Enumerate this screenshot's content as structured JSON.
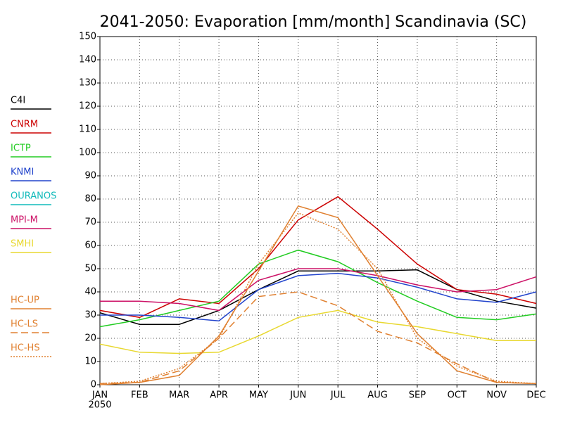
{
  "chart_data": {
    "type": "line",
    "title": "2041-2050: Evaporation [mm/month] Scandinavia (SC)",
    "categories": [
      "JAN",
      "FEB",
      "MAR",
      "APR",
      "MAY",
      "JUN",
      "JUL",
      "AUG",
      "SEP",
      "OCT",
      "NOV",
      "DEC"
    ],
    "x_sublabel": "2050",
    "ylim": [
      0,
      150
    ],
    "yticks": [
      0,
      10,
      20,
      30,
      40,
      50,
      60,
      70,
      80,
      90,
      100,
      110,
      120,
      130,
      140,
      150
    ],
    "grid": true,
    "legend": "left",
    "series": [
      {
        "name": "C4I",
        "color": "#000000",
        "dash": "solid",
        "values": [
          31,
          26,
          26,
          32,
          41,
          49,
          49,
          49,
          49.5,
          41,
          36,
          33
        ]
      },
      {
        "name": "CNRM",
        "color": "#cc0000",
        "dash": "solid",
        "values": [
          32,
          29,
          37,
          35,
          50,
          71,
          81,
          67,
          52,
          41,
          39,
          35
        ]
      },
      {
        "name": "ICTP",
        "color": "#22cc22",
        "dash": "solid",
        "values": [
          25,
          28,
          32,
          36,
          52,
          58,
          53,
          44,
          36,
          29,
          28,
          30.5
        ]
      },
      {
        "name": "KNMI",
        "color": "#2244cc",
        "dash": "solid",
        "values": [
          30,
          30,
          29,
          27.5,
          41,
          47,
          48,
          46,
          42,
          37,
          35.5,
          40
        ]
      },
      {
        "name": "OURANOS",
        "color": "#11bbbb",
        "dash": "solid",
        "values": [
          null,
          null,
          null,
          null,
          null,
          null,
          null,
          null,
          null,
          null,
          null,
          null
        ]
      },
      {
        "name": "MPI-M",
        "color": "#cc1166",
        "dash": "solid",
        "values": [
          36,
          36,
          35,
          32,
          45,
          50,
          50,
          47,
          43,
          40,
          41,
          46.5
        ]
      },
      {
        "name": "SMHI",
        "color": "#e8d830",
        "dash": "solid",
        "values": [
          17.5,
          14,
          13.5,
          14,
          21,
          29,
          32,
          27,
          25,
          22,
          19,
          19
        ]
      },
      {
        "name": "HC-UP",
        "color": "#e08030",
        "dash": "solid",
        "values": [
          0,
          1,
          4,
          21,
          49,
          77,
          72,
          47,
          22,
          6,
          1,
          0.5
        ]
      },
      {
        "name": "HC-LS",
        "color": "#e08030",
        "dash": "dashed",
        "values": [
          0.5,
          1,
          6,
          20,
          38,
          40,
          34,
          23,
          18,
          9,
          1,
          0.5
        ]
      },
      {
        "name": "HC-HS",
        "color": "#e08030",
        "dash": "dotted",
        "values": [
          0.5,
          1.5,
          7,
          20,
          52,
          74,
          67,
          50,
          20,
          8,
          1.5,
          0.5
        ]
      }
    ]
  }
}
